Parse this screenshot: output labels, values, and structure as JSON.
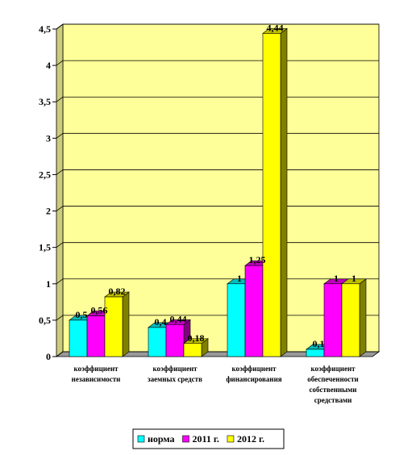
{
  "chart_data": {
    "type": "bar3d",
    "categories": [
      "коэффициент\nнезависимости",
      "коэффициент\nзаемных средств",
      "коэффициент\nфинансирования",
      "коэффициент\nобеспеченности\nсобственными\nсредствами"
    ],
    "series": [
      {
        "name": "норма",
        "color": "#00ffff",
        "values": [
          0.5,
          0.4,
          1,
          0.1
        ],
        "value_labels": [
          "0,5",
          "0,4",
          "1",
          "0,1"
        ]
      },
      {
        "name": "2011 г.",
        "color": "#ff00ff",
        "values": [
          0.56,
          0.44,
          1.25,
          1
        ],
        "value_labels": [
          "0,56",
          "0,44",
          "1,25",
          "1"
        ]
      },
      {
        "name": "2012 г.",
        "color": "#ffff00",
        "values": [
          0.82,
          0.18,
          4.44,
          1
        ],
        "value_labels": [
          "0,82",
          "0,18",
          "4,44",
          "1"
        ]
      }
    ],
    "ylim": [
      0,
      4.5
    ],
    "yticks": [
      0,
      {
        "value": 0.5,
        "label": "0,5"
      },
      1,
      {
        "value": 1.5,
        "label": "1,5"
      },
      2,
      {
        "value": 2.5,
        "label": "2,5"
      },
      3,
      {
        "value": 3.5,
        "label": "3,5"
      },
      4,
      {
        "value": 4.5,
        "label": "4,5"
      }
    ],
    "grid": true,
    "wall_color": "#ffff99",
    "legend": "bottom"
  }
}
